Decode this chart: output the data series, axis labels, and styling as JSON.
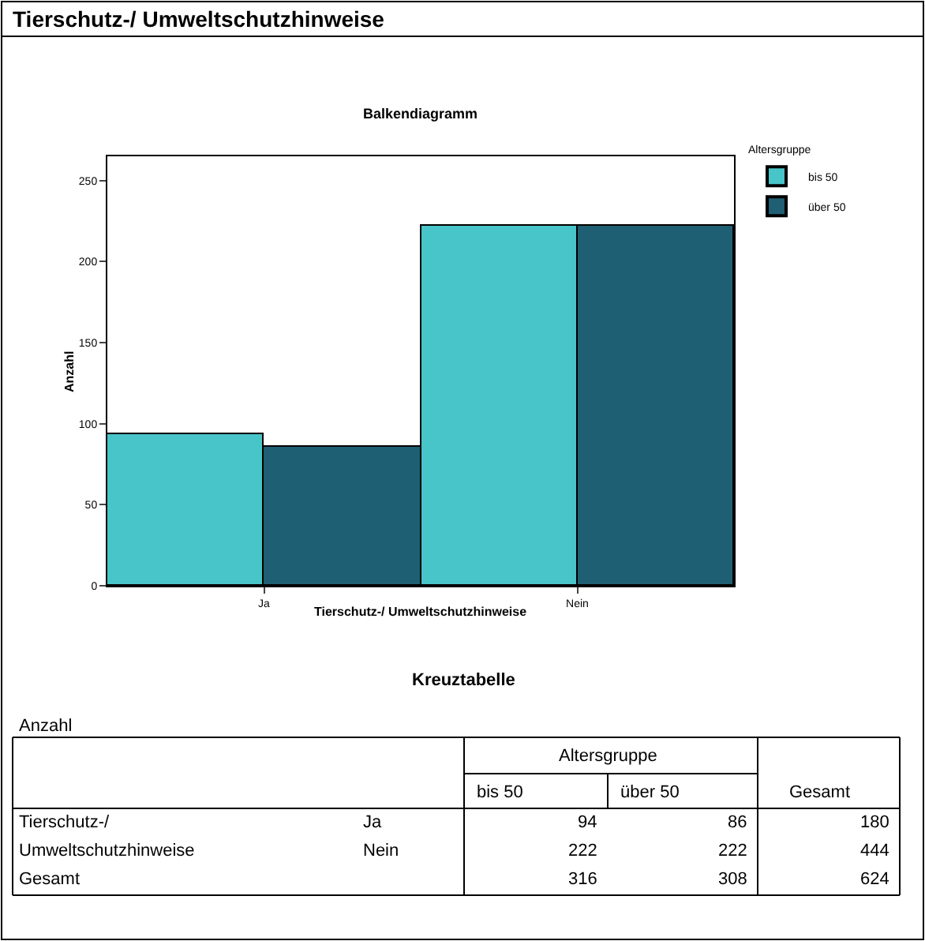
{
  "chart_data": {
    "type": "bar",
    "title": "Tierschutz-/ Umweltschutzhinweise",
    "subtitle": "Balkendiagramm",
    "xlabel": "Tierschutz-/ Umweltschutzhinweise",
    "ylabel": "Anzahl",
    "legend_title": "Altersgruppe",
    "categories": [
      "Ja",
      "Nein"
    ],
    "series": [
      {
        "name": "bis 50",
        "color": "#48c5c9",
        "values": [
          94,
          222
        ]
      },
      {
        "name": "über 50",
        "color": "#1f5f73",
        "values": [
          86,
          222
        ]
      }
    ],
    "ylim": [
      0,
      265
    ],
    "yticks": [
      0,
      50,
      100,
      150,
      200,
      250
    ],
    "legend": "top right",
    "annotations": [
      "Kreuztabelle",
      "Anzahl",
      "Altersgruppe",
      "Gesamt",
      "180",
      "444",
      "316",
      "308",
      "624",
      "94",
      "86",
      "222",
      "222"
    ]
  }
}
